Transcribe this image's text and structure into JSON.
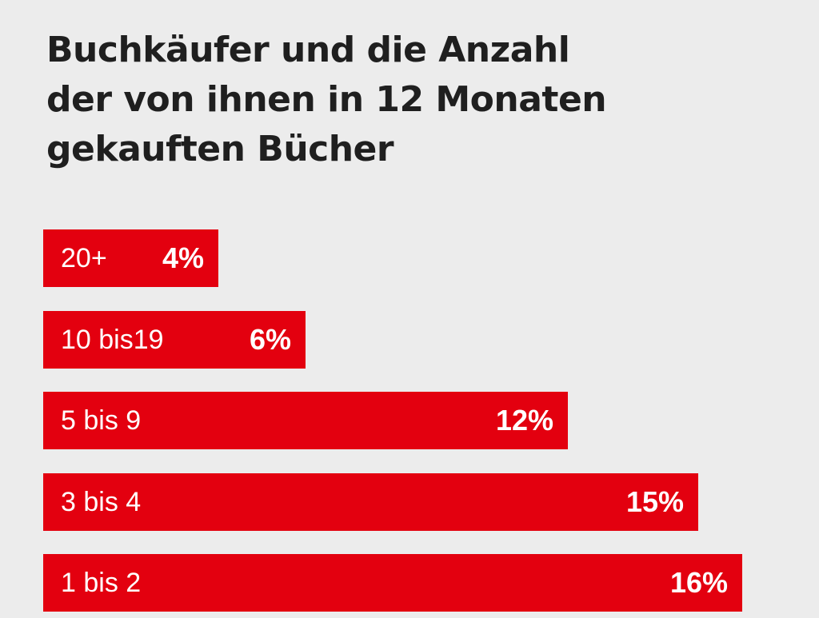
{
  "chart_data": {
    "type": "bar",
    "orientation": "horizontal",
    "title": "Buchkäufer und die Anzahl der von ihnen in 12 Monaten gekauften Bücher",
    "title_lines": [
      "Buchkäufer und die Anzahl",
      "der von ihnen in 12 Monaten",
      "gekauften Bücher"
    ],
    "categories": [
      "20+",
      "10 bis19",
      "5 bis 9",
      "3 bis 4",
      "1 bis 2"
    ],
    "values": [
      4,
      6,
      12,
      15,
      16
    ],
    "value_labels": [
      "4%",
      "6%",
      "12%",
      "15%",
      "16%"
    ],
    "unit": "%",
    "xlim": [
      0,
      16
    ],
    "grid": false,
    "legend": "none",
    "bar_color": "#e3000f",
    "background_color": "#ececec"
  }
}
